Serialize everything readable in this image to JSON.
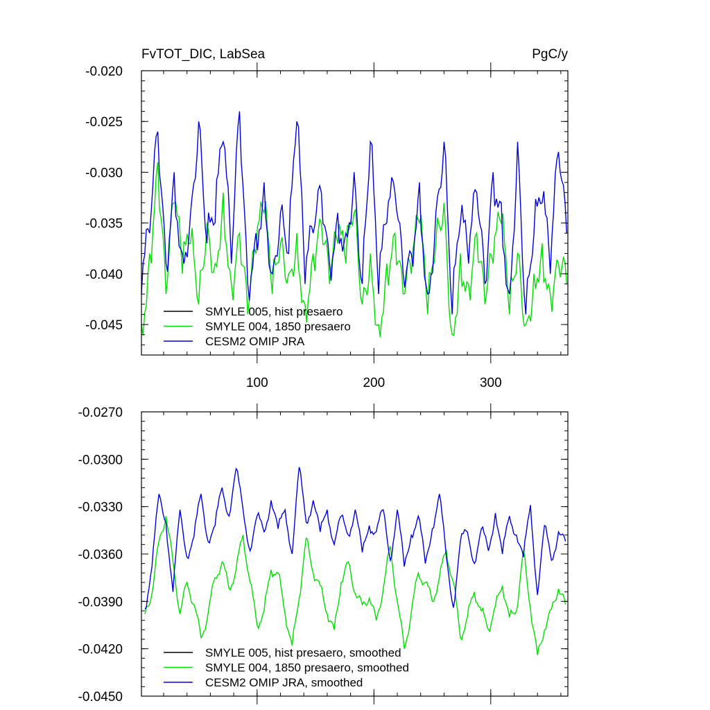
{
  "chart_data": [
    {
      "type": "line",
      "title_left": "FvTOT_DIC, LabSea",
      "title_right": "PgC/y",
      "xlabel": "",
      "ylabel": "",
      "xlim": [
        1,
        366
      ],
      "ylim": [
        -0.048,
        -0.02
      ],
      "x_ticks": [
        100,
        200,
        300
      ],
      "x_tick_labels": [
        "100",
        "200",
        "300"
      ],
      "y_ticks": [
        -0.045,
        -0.04,
        -0.035,
        -0.03,
        -0.025,
        -0.02
      ],
      "y_tick_labels": [
        "-0.045",
        "-0.040",
        "-0.035",
        "-0.030",
        "-0.025",
        "-0.020"
      ],
      "grid": false,
      "legend_position": "bottom-left",
      "series": [
        {
          "name": "SMYLE 005, hist presaero",
          "color": "#000000",
          "x": [],
          "values": []
        },
        {
          "name": "SMYLE 004, 1850 presaero",
          "color": "#00dd00",
          "x": [
            1,
            8,
            15,
            22,
            29,
            36,
            43,
            50,
            57,
            64,
            71,
            78,
            85,
            92,
            99,
            106,
            113,
            120,
            127,
            134,
            141,
            148,
            155,
            162,
            169,
            176,
            183,
            190,
            197,
            204,
            211,
            218,
            225,
            232,
            239,
            246,
            253,
            260,
            267,
            274,
            281,
            288,
            295,
            302,
            309,
            316,
            323,
            330,
            337,
            344,
            351,
            358,
            365
          ],
          "values": [
            -0.045,
            -0.038,
            -0.029,
            -0.042,
            -0.033,
            -0.04,
            -0.037,
            -0.043,
            -0.035,
            -0.039,
            -0.032,
            -0.041,
            -0.036,
            -0.044,
            -0.038,
            -0.034,
            -0.042,
            -0.037,
            -0.04,
            -0.036,
            -0.043,
            -0.038,
            -0.035,
            -0.041,
            -0.037,
            -0.039,
            -0.034,
            -0.043,
            -0.038,
            -0.045,
            -0.039,
            -0.036,
            -0.042,
            -0.04,
            -0.035,
            -0.044,
            -0.037,
            -0.033,
            -0.046,
            -0.038,
            -0.041,
            -0.036,
            -0.043,
            -0.039,
            -0.035,
            -0.044,
            -0.038,
            -0.045,
            -0.04,
            -0.037,
            -0.042,
            -0.039,
            -0.041
          ]
        },
        {
          "name": "CESM2 OMIP JRA",
          "color": "#0000dd",
          "x": [
            1,
            8,
            15,
            22,
            29,
            36,
            43,
            50,
            57,
            64,
            71,
            78,
            85,
            92,
            99,
            106,
            113,
            120,
            127,
            134,
            141,
            148,
            155,
            162,
            169,
            176,
            183,
            190,
            197,
            204,
            211,
            218,
            225,
            232,
            239,
            246,
            253,
            260,
            267,
            274,
            281,
            288,
            295,
            302,
            309,
            316,
            323,
            330,
            337,
            344,
            351,
            358,
            365
          ],
          "values": [
            -0.042,
            -0.036,
            -0.026,
            -0.039,
            -0.03,
            -0.038,
            -0.034,
            -0.025,
            -0.037,
            -0.035,
            -0.027,
            -0.039,
            -0.024,
            -0.041,
            -0.036,
            -0.031,
            -0.04,
            -0.034,
            -0.038,
            -0.025,
            -0.041,
            -0.036,
            -0.032,
            -0.039,
            -0.034,
            -0.036,
            -0.03,
            -0.041,
            -0.027,
            -0.042,
            -0.035,
            -0.032,
            -0.04,
            -0.038,
            -0.031,
            -0.042,
            -0.034,
            -0.027,
            -0.044,
            -0.035,
            -0.039,
            -0.032,
            -0.041,
            -0.03,
            -0.033,
            -0.042,
            -0.027,
            -0.044,
            -0.036,
            -0.033,
            -0.04,
            -0.028,
            -0.036
          ]
        }
      ]
    },
    {
      "type": "line",
      "title_left": "",
      "title_right": "",
      "xlabel": "",
      "ylabel": "",
      "xlim": [
        1,
        366
      ],
      "ylim": [
        -0.045,
        -0.027
      ],
      "x_ticks": [
        100,
        200,
        300
      ],
      "x_tick_labels": [],
      "y_ticks": [
        -0.045,
        -0.042,
        -0.039,
        -0.036,
        -0.033,
        -0.03,
        -0.027
      ],
      "y_tick_labels": [
        "-0.0450",
        "-0.0420",
        "-0.0390",
        "-0.0360",
        "-0.0330",
        "-0.0300",
        "-0.0270"
      ],
      "grid": false,
      "legend_position": "bottom-left",
      "series": [
        {
          "name": "SMYLE 005, hist presaero, smoothed",
          "color": "#000000",
          "x": [],
          "values": []
        },
        {
          "name": "SMYLE 004, 1850 presaero, smoothed",
          "color": "#00dd00",
          "x": [
            4,
            10,
            16,
            22,
            28,
            34,
            40,
            46,
            52,
            58,
            64,
            70,
            76,
            82,
            88,
            94,
            100,
            106,
            112,
            118,
            124,
            130,
            136,
            142,
            148,
            154,
            160,
            166,
            172,
            178,
            184,
            190,
            196,
            202,
            208,
            214,
            220,
            226,
            232,
            238,
            244,
            250,
            256,
            262,
            268,
            274,
            280,
            286,
            292,
            298,
            304,
            310,
            316,
            322,
            328,
            334,
            340,
            346,
            352,
            358,
            364
          ],
          "values": [
            -0.0398,
            -0.0385,
            -0.0352,
            -0.0336,
            -0.0365,
            -0.0398,
            -0.0378,
            -0.0392,
            -0.0413,
            -0.0398,
            -0.0375,
            -0.0365,
            -0.0382,
            -0.037,
            -0.0348,
            -0.0378,
            -0.0405,
            -0.0396,
            -0.037,
            -0.0372,
            -0.0398,
            -0.0418,
            -0.0388,
            -0.035,
            -0.0372,
            -0.038,
            -0.0398,
            -0.0408,
            -0.0378,
            -0.0365,
            -0.0385,
            -0.0392,
            -0.0388,
            -0.0402,
            -0.0382,
            -0.0355,
            -0.039,
            -0.042,
            -0.0397,
            -0.0372,
            -0.0378,
            -0.039,
            -0.0375,
            -0.0358,
            -0.0378,
            -0.0413,
            -0.04,
            -0.0384,
            -0.0396,
            -0.0408,
            -0.0393,
            -0.038,
            -0.04,
            -0.0396,
            -0.0358,
            -0.0395,
            -0.0424,
            -0.0408,
            -0.0395,
            -0.0382,
            -0.0392
          ]
        },
        {
          "name": "CESM2 OMIP JRA, smoothed",
          "color": "#0000dd",
          "x": [
            4,
            10,
            16,
            22,
            28,
            34,
            40,
            46,
            52,
            58,
            64,
            70,
            76,
            82,
            88,
            94,
            100,
            106,
            112,
            118,
            124,
            130,
            136,
            142,
            148,
            154,
            160,
            166,
            172,
            178,
            184,
            190,
            196,
            202,
            208,
            214,
            220,
            226,
            232,
            238,
            244,
            250,
            256,
            262,
            268,
            274,
            280,
            286,
            292,
            298,
            304,
            310,
            316,
            322,
            328,
            334,
            340,
            346,
            352,
            358,
            364
          ],
          "values": [
            -0.0395,
            -0.0368,
            -0.0322,
            -0.034,
            -0.0384,
            -0.0332,
            -0.0362,
            -0.0349,
            -0.0322,
            -0.0352,
            -0.0342,
            -0.0318,
            -0.0336,
            -0.0306,
            -0.0332,
            -0.0358,
            -0.0336,
            -0.0346,
            -0.0326,
            -0.0344,
            -0.0332,
            -0.036,
            -0.0305,
            -0.034,
            -0.0326,
            -0.0346,
            -0.0332,
            -0.0354,
            -0.0336,
            -0.0348,
            -0.0332,
            -0.0359,
            -0.0342,
            -0.0346,
            -0.0332,
            -0.0364,
            -0.0332,
            -0.0368,
            -0.0348,
            -0.0336,
            -0.0366,
            -0.0344,
            -0.0322,
            -0.0362,
            -0.0394,
            -0.0352,
            -0.0346,
            -0.0366,
            -0.0344,
            -0.0358,
            -0.0334,
            -0.036,
            -0.0336,
            -0.0348,
            -0.0362,
            -0.0329,
            -0.0386,
            -0.0342,
            -0.0364,
            -0.0346,
            -0.0352
          ]
        }
      ]
    }
  ]
}
